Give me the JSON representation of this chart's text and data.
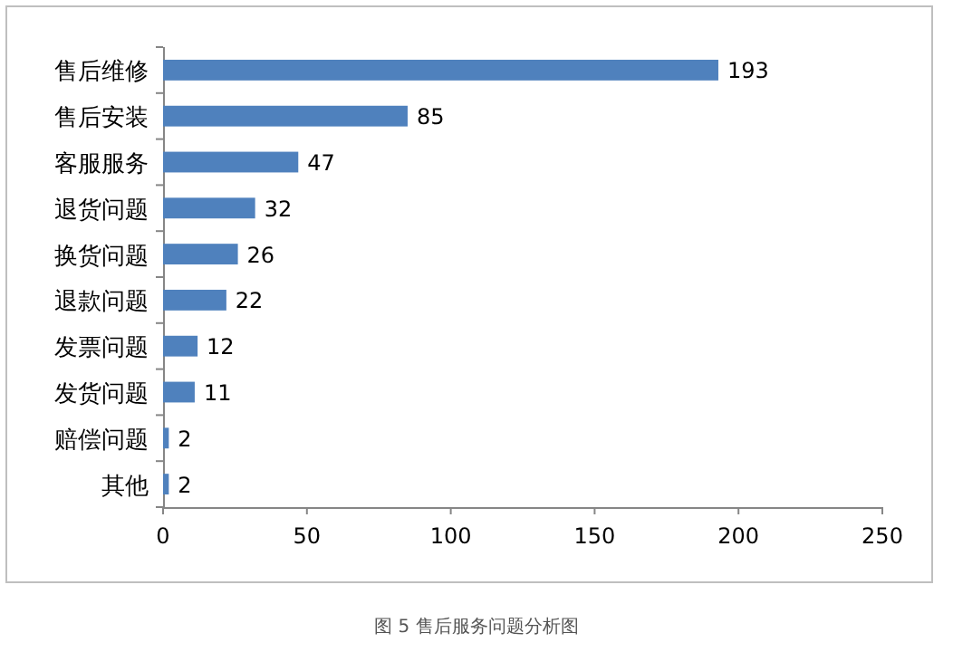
{
  "chart_data": {
    "type": "bar",
    "orientation": "horizontal",
    "categories": [
      "售后维修",
      "售后安装",
      "客服服务",
      "退货问题",
      "换货问题",
      "退款问题",
      "发票问题",
      "发货问题",
      "赔偿问题",
      "其他"
    ],
    "values": [
      193,
      85,
      47,
      32,
      26,
      22,
      12,
      11,
      2,
      2
    ],
    "color": "#4f81bd",
    "xlim": [
      0,
      250
    ],
    "xticks": [
      0,
      50,
      100,
      150,
      200,
      250
    ],
    "data_labels": true,
    "annotations": [
      "图 5 售后服务问题分析图"
    ]
  }
}
